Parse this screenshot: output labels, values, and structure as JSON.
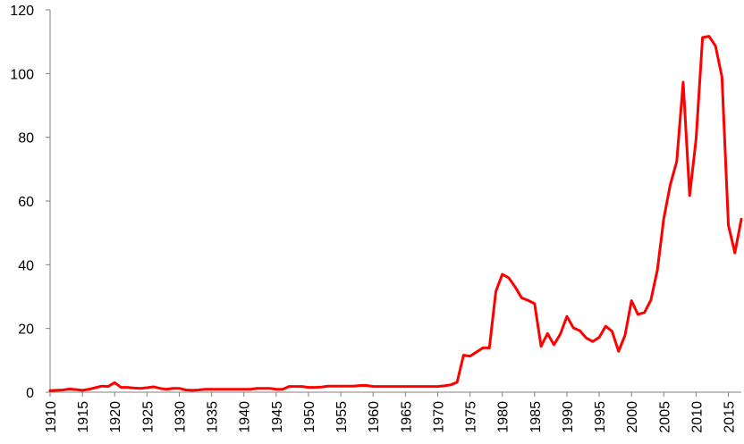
{
  "chart_data": {
    "type": "line",
    "title": "",
    "xlabel": "",
    "ylabel": "",
    "xlim": [
      1910,
      2017
    ],
    "ylim": [
      0,
      120
    ],
    "y_ticks": [
      0,
      20,
      40,
      60,
      80,
      100,
      120
    ],
    "x_ticks": [
      1910,
      1915,
      1920,
      1925,
      1930,
      1935,
      1940,
      1945,
      1950,
      1955,
      1960,
      1965,
      1970,
      1975,
      1980,
      1985,
      1990,
      1995,
      2000,
      2005,
      2010,
      2015
    ],
    "x_tick_labels_rotated": true,
    "grid": false,
    "legend": "none",
    "series": [
      {
        "color": "#ff0000",
        "x": [
          1910,
          1911,
          1912,
          1913,
          1914,
          1915,
          1916,
          1917,
          1918,
          1919,
          1920,
          1921,
          1922,
          1923,
          1924,
          1925,
          1926,
          1927,
          1928,
          1929,
          1930,
          1931,
          1932,
          1933,
          1934,
          1935,
          1936,
          1937,
          1938,
          1939,
          1940,
          1941,
          1942,
          1943,
          1944,
          1945,
          1946,
          1947,
          1948,
          1949,
          1950,
          1951,
          1952,
          1953,
          1954,
          1955,
          1956,
          1957,
          1958,
          1959,
          1960,
          1961,
          1962,
          1963,
          1964,
          1965,
          1966,
          1967,
          1968,
          1969,
          1970,
          1971,
          1972,
          1973,
          1974,
          1975,
          1976,
          1977,
          1978,
          1979,
          1980,
          1981,
          1982,
          1983,
          1984,
          1985,
          1986,
          1987,
          1988,
          1989,
          1990,
          1991,
          1992,
          1993,
          1994,
          1995,
          1996,
          1997,
          1998,
          1999,
          2000,
          2001,
          2002,
          2003,
          2004,
          2005,
          2006,
          2007,
          2008,
          2009,
          2010,
          2011,
          2012,
          2013,
          2014,
          2015,
          2016,
          2017
        ],
        "y": [
          0.5,
          0.6,
          0.7,
          1.0,
          0.8,
          0.6,
          0.9,
          1.4,
          1.9,
          1.8,
          3.0,
          1.5,
          1.5,
          1.3,
          1.2,
          1.4,
          1.7,
          1.2,
          0.9,
          1.2,
          1.2,
          0.7,
          0.6,
          0.7,
          0.9,
          0.9,
          0.9,
          0.9,
          0.9,
          0.9,
          0.9,
          0.9,
          1.2,
          1.2,
          1.2,
          0.9,
          0.9,
          1.8,
          1.8,
          1.8,
          1.5,
          1.5,
          1.6,
          1.9,
          1.9,
          1.9,
          1.9,
          1.9,
          2.1,
          2.1,
          1.8,
          1.8,
          1.8,
          1.8,
          1.8,
          1.8,
          1.8,
          1.8,
          1.8,
          1.8,
          1.8,
          2.0,
          2.3,
          3.1,
          11.6,
          11.3,
          12.6,
          13.9,
          13.9,
          31.6,
          37.0,
          35.9,
          33.0,
          29.6,
          28.8,
          27.8,
          14.4,
          18.4,
          14.9,
          18.3,
          23.8,
          20.2,
          19.3,
          17.0,
          15.9,
          17.2,
          20.7,
          19.1,
          12.8,
          17.9,
          28.7,
          24.4,
          25.0,
          28.9,
          38.3,
          54.5,
          65.1,
          72.4,
          97.3,
          61.7,
          79.5,
          111.3,
          111.7,
          108.7,
          99.0,
          52.4,
          43.7,
          54.3
        ]
      }
    ]
  }
}
